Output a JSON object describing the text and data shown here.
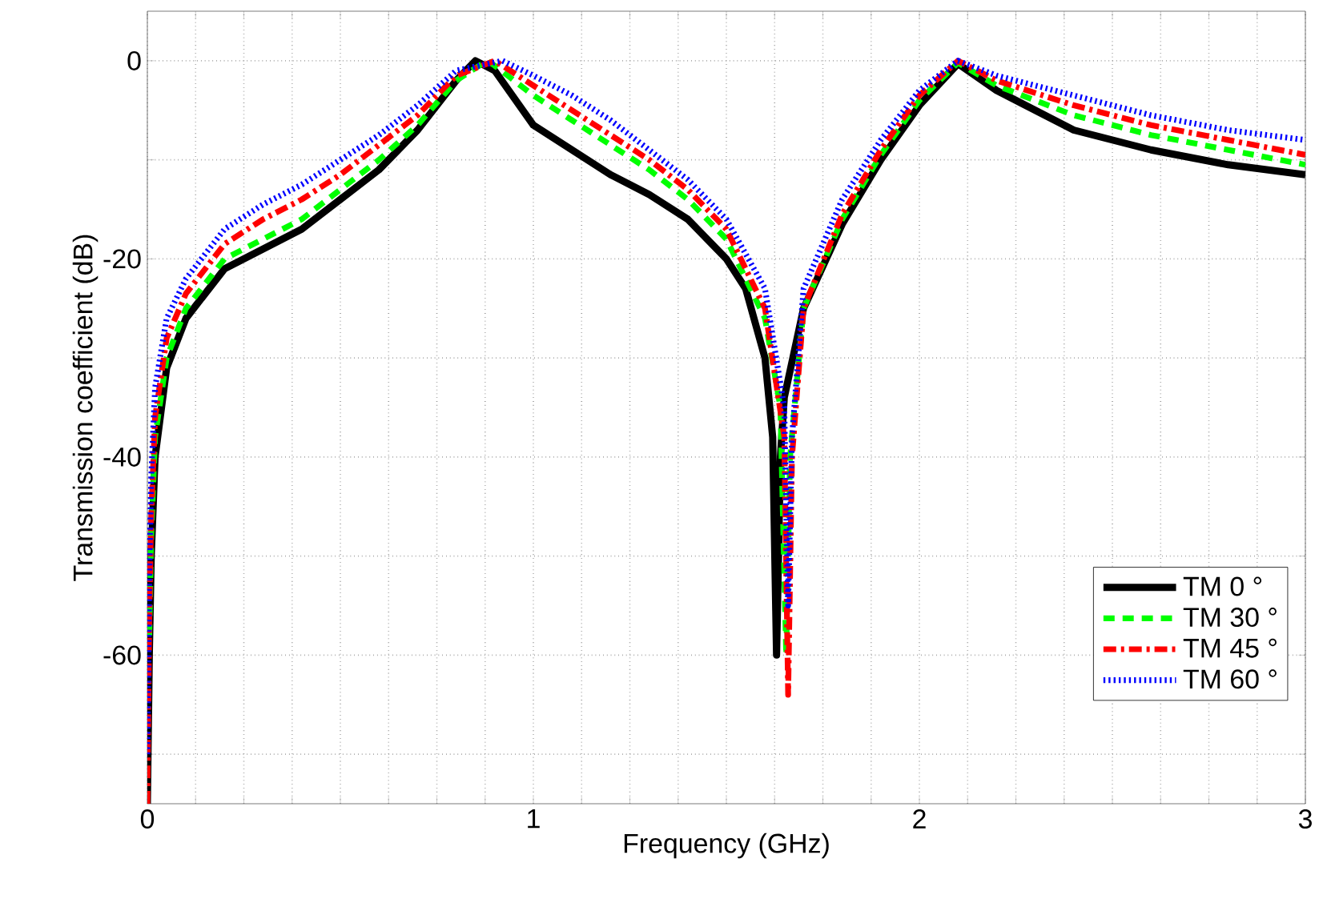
{
  "chart_data": {
    "type": "line",
    "xlabel": "Frequency (GHz)",
    "ylabel": "Transmission coefficient (dB)",
    "xlim": [
      0,
      3
    ],
    "ylim": [
      -75,
      5
    ],
    "xticks": [
      0,
      {
        "value": 0.125,
        "label": null
      },
      {
        "value": 0.25,
        "label": null
      },
      {
        "value": 0.375,
        "label": null
      },
      {
        "value": 0.5,
        "label": null
      },
      {
        "value": 0.625,
        "label": null
      },
      {
        "value": 0.75,
        "label": null
      },
      {
        "value": 0.875,
        "label": null
      },
      1,
      {
        "value": 1.125,
        "label": null
      },
      {
        "value": 1.25,
        "label": null
      },
      {
        "value": 1.375,
        "label": null
      },
      {
        "value": 1.5,
        "label": null
      },
      {
        "value": 1.625,
        "label": null
      },
      {
        "value": 1.75,
        "label": null
      },
      {
        "value": 1.875,
        "label": null
      },
      2,
      {
        "value": 2.125,
        "label": null
      },
      {
        "value": 2.25,
        "label": null
      },
      {
        "value": 2.375,
        "label": null
      },
      {
        "value": 2.5,
        "label": null
      },
      {
        "value": 2.625,
        "label": null
      },
      {
        "value": 2.75,
        "label": null
      },
      {
        "value": 2.875,
        "label": null
      },
      3
    ],
    "yticks": [
      {
        "value": -70,
        "label": null
      },
      -60,
      {
        "value": -50,
        "label": null
      },
      -40,
      {
        "value": -30,
        "label": null
      },
      -20,
      {
        "value": -10,
        "label": null
      },
      0
    ],
    "grid": true,
    "legend": "bottom right",
    "marker": "none",
    "series": [
      {
        "name": "TM  0 °",
        "color": "#000000",
        "line_style": "solid",
        "x": [
          0,
          0.005,
          0.01,
          0.02,
          0.05,
          0.1,
          0.2,
          0.3,
          0.4,
          0.5,
          0.6,
          0.7,
          0.8,
          0.85,
          0.9,
          1.0,
          1.1,
          1.2,
          1.3,
          1.4,
          1.5,
          1.55,
          1.6,
          1.62,
          1.63,
          1.64,
          1.65,
          1.7,
          1.8,
          1.9,
          2.0,
          2.1,
          2.2,
          2.4,
          2.6,
          2.8,
          3.0
        ],
        "values": [
          -75,
          -60,
          -50,
          -40,
          -31,
          -26,
          -21,
          -19,
          -17,
          -14,
          -11,
          -7,
          -2,
          0,
          -1,
          -6.5,
          -9,
          -11.5,
          -13.5,
          -16,
          -20,
          -23,
          -30,
          -38,
          -60,
          -40,
          -34,
          -25,
          -16.5,
          -10,
          -4.5,
          -0.3,
          -3,
          -7,
          -9,
          -10.5,
          -11.5
        ]
      },
      {
        "name": "TM  30 °",
        "color": "#00ff00",
        "line_style": "dashed",
        "x": [
          0.005,
          0.01,
          0.02,
          0.05,
          0.1,
          0.2,
          0.3,
          0.4,
          0.5,
          0.6,
          0.7,
          0.8,
          0.88,
          0.9,
          1.0,
          1.1,
          1.2,
          1.3,
          1.4,
          1.5,
          1.6,
          1.64,
          1.655,
          1.665,
          1.7,
          1.8,
          1.9,
          2.0,
          2.1,
          2.2,
          2.4,
          2.6,
          2.8,
          3.0
        ],
        "values": [
          -58,
          -48,
          -38,
          -30,
          -25,
          -20,
          -18,
          -16,
          -13,
          -10,
          -6.5,
          -2,
          0,
          -0.5,
          -3.5,
          -6,
          -8.5,
          -11,
          -14,
          -18,
          -26,
          -35,
          -60,
          -40,
          -25,
          -16,
          -9.5,
          -4,
          -0.2,
          -2.5,
          -5.5,
          -7.5,
          -9,
          -10.5
        ]
      },
      {
        "name": "TM  45 °",
        "color": "#ff0000",
        "line_style": "dashdot",
        "x": [
          0,
          0.005,
          0.01,
          0.02,
          0.05,
          0.1,
          0.2,
          0.3,
          0.4,
          0.5,
          0.6,
          0.7,
          0.8,
          0.9,
          1.0,
          1.1,
          1.2,
          1.3,
          1.4,
          1.5,
          1.6,
          1.65,
          1.66,
          1.67,
          1.7,
          1.8,
          1.9,
          2.0,
          2.1,
          2.2,
          2.4,
          2.6,
          2.8,
          3.0
        ],
        "values": [
          -75,
          -56,
          -46,
          -36,
          -28,
          -23.5,
          -18.5,
          -16,
          -14,
          -11.5,
          -8.5,
          -5.5,
          -1.5,
          0,
          -2.5,
          -5,
          -7.5,
          -10,
          -13,
          -17,
          -25,
          -38,
          -64,
          -40,
          -25,
          -15.5,
          -9,
          -3.5,
          0,
          -2,
          -4.5,
          -6.5,
          -8,
          -9.5
        ]
      },
      {
        "name": "TM  60 °",
        "color": "#0000ff",
        "line_style": "dotted",
        "x": [
          0,
          0.005,
          0.01,
          0.02,
          0.05,
          0.1,
          0.2,
          0.3,
          0.4,
          0.5,
          0.6,
          0.7,
          0.8,
          0.92,
          1.0,
          1.1,
          1.2,
          1.3,
          1.4,
          1.5,
          1.6,
          1.65,
          1.66,
          1.67,
          1.7,
          1.8,
          1.9,
          2.0,
          2.1,
          2.2,
          2.4,
          2.6,
          2.8,
          3.0
        ],
        "values": [
          -70,
          -52,
          -42,
          -33,
          -26,
          -22,
          -17,
          -14.5,
          -12.5,
          -10,
          -7.5,
          -4.5,
          -1,
          0,
          -1.5,
          -3.5,
          -6,
          -9,
          -12,
          -16,
          -23,
          -35,
          -55,
          -38,
          -23,
          -14,
          -8,
          -3,
          0,
          -1.5,
          -3.5,
          -5.5,
          -7,
          -8
        ]
      }
    ]
  }
}
